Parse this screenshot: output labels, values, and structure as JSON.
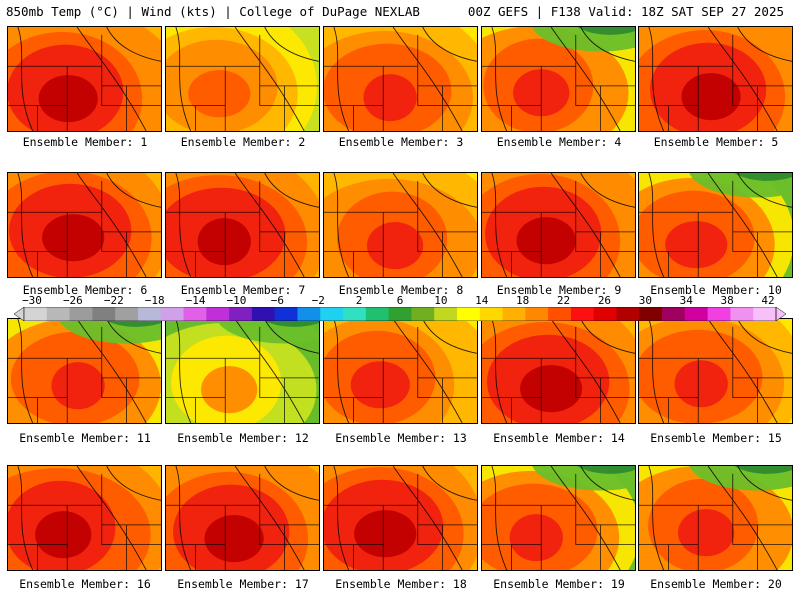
{
  "header": {
    "title_left": "850mb Temp (°C) | Wind (kts) | College of DuPage NEXLAB",
    "title_right": "00Z GEFS | F138 Valid: 18Z SAT SEP 27 2025"
  },
  "members": [
    {
      "label": "Ensemble Member: 1",
      "style": "hot"
    },
    {
      "label": "Ensemble Member: 2",
      "style": "warm"
    },
    {
      "label": "Ensemble Member: 3",
      "style": "mid"
    },
    {
      "label": "Ensemble Member: 4",
      "style": "coolnorth"
    },
    {
      "label": "Ensemble Member: 5",
      "style": "hot"
    },
    {
      "label": "Ensemble Member: 6",
      "style": "hot"
    },
    {
      "label": "Ensemble Member: 7",
      "style": "hot"
    },
    {
      "label": "Ensemble Member: 8",
      "style": "mid"
    },
    {
      "label": "Ensemble Member: 9",
      "style": "hot"
    },
    {
      "label": "Ensemble Member: 10",
      "style": "coolnorth"
    },
    {
      "label": "Ensemble Member: 11",
      "style": "coolnorth"
    },
    {
      "label": "Ensemble Member: 12",
      "style": "cool"
    },
    {
      "label": "Ensemble Member: 13",
      "style": "mid"
    },
    {
      "label": "Ensemble Member: 14",
      "style": "hot"
    },
    {
      "label": "Ensemble Member: 15",
      "style": "mid"
    },
    {
      "label": "Ensemble Member: 16",
      "style": "hot"
    },
    {
      "label": "Ensemble Member: 17",
      "style": "hot"
    },
    {
      "label": "Ensemble Member: 18",
      "style": "hot"
    },
    {
      "label": "Ensemble Member: 19",
      "style": "coolnorth"
    },
    {
      "label": "Ensemble Member: 20",
      "style": "coolnorth"
    }
  ],
  "colorbar": {
    "ticks": [
      "−30",
      "−26",
      "−22",
      "−18",
      "−14",
      "−10",
      "−6",
      "−2",
      "2",
      "6",
      "10",
      "14",
      "18",
      "22",
      "26",
      "30",
      "34",
      "38",
      "42"
    ],
    "colors": [
      "#d4d4d4",
      "#b8b8b8",
      "#9c9c9c",
      "#808080",
      "#a0a0a0",
      "#b8b8d8",
      "#d0a0e8",
      "#e060e8",
      "#c030d8",
      "#8020c0",
      "#3010b0",
      "#1030d8",
      "#1090e8",
      "#20d0f0",
      "#30e0c0",
      "#20c070",
      "#30a030",
      "#70b020",
      "#c0d820",
      "#ffff00",
      "#ffd800",
      "#ffb000",
      "#ff8800",
      "#ff5000",
      "#ff1010",
      "#e00000",
      "#b00000",
      "#800000",
      "#a00060",
      "#d000a0",
      "#f040e0",
      "#f090f0",
      "#f8c0f8"
    ]
  },
  "field_colors": {
    "green_dark": "#2e8b2e",
    "green": "#6cbf2a",
    "yellow_green": "#c7e020",
    "yellow": "#ffe800",
    "orange_light": "#ffb400",
    "orange": "#ff8a00",
    "orange_red": "#ff5a00",
    "red": "#f02010",
    "dark_red": "#c00000"
  }
}
